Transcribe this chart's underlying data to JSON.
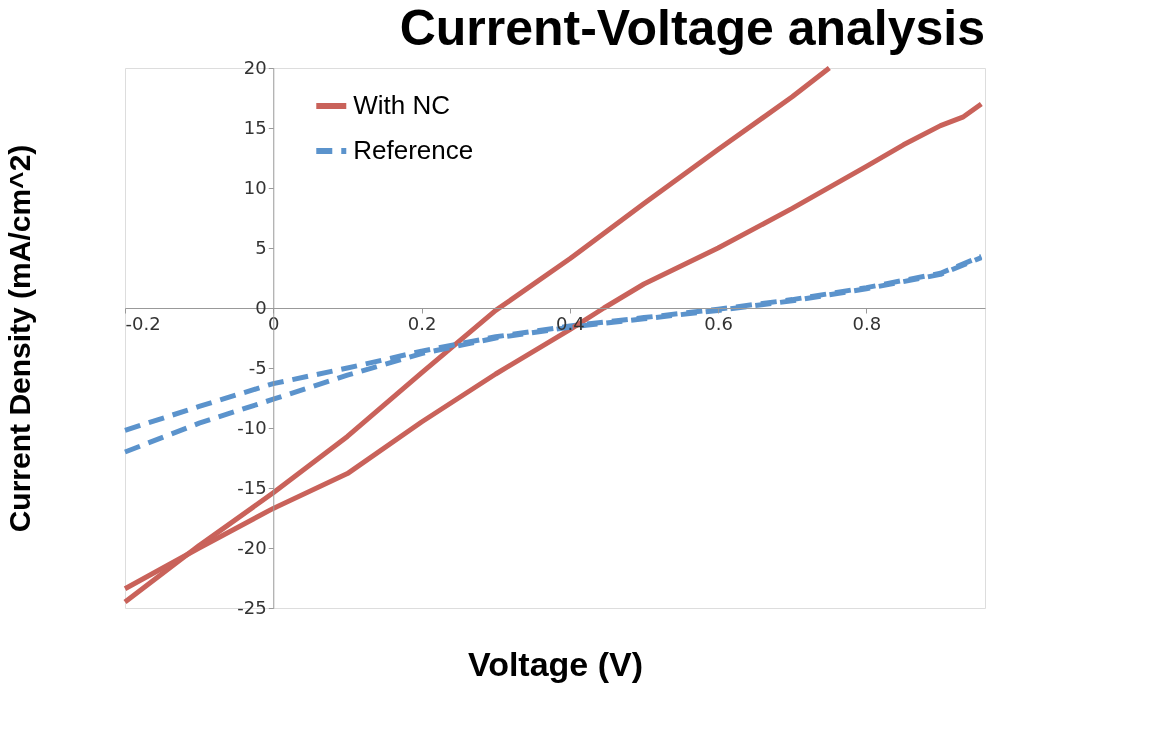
{
  "chart_data": {
    "type": "line",
    "title": "Current-Voltage analysis",
    "xlabel": "Voltage (V)",
    "ylabel": "Current Density (mA/cm^2)",
    "xlim": [
      -0.2,
      0.96
    ],
    "xticks": [
      -0.2,
      0,
      0.2,
      0.4,
      0.6,
      0.8
    ],
    "ylim": [
      -25,
      20
    ],
    "yticks": [
      -25,
      -20,
      -15,
      -10,
      -5,
      0,
      5,
      10,
      15,
      20
    ],
    "grid": false,
    "legend": "top left",
    "marker": "none",
    "series": [
      {
        "name": "With NC",
        "color": "#c9625a",
        "line_style": "solid",
        "x": [
          -0.2,
          -0.1,
          0,
          0.1,
          0.2,
          0.3,
          0.4,
          0.5,
          0.6,
          0.7,
          0.75
        ],
        "values": [
          -24.5,
          -19.8,
          -15.4,
          -10.7,
          -5.4,
          -0.2,
          4.1,
          8.7,
          13.2,
          17.6,
          20
        ]
      },
      {
        "name": "Reference",
        "color": "#5b93cc",
        "line_style": "dashed",
        "x": [
          -0.2,
          -0.1,
          0,
          0.1,
          0.2,
          0.3,
          0.4,
          0.5,
          0.6,
          0.7,
          0.8,
          0.9,
          0.955
        ],
        "values": [
          -10.2,
          -8.2,
          -6.3,
          -5.0,
          -3.6,
          -2.4,
          -1.5,
          -0.8,
          -0.1,
          0.7,
          1.7,
          2.9,
          4.3
        ]
      },
      {
        "color": "#c9625a",
        "line_style": "solid",
        "x": [
          -0.2,
          -0.1,
          0,
          0.1,
          0.2,
          0.3,
          0.4,
          0.446,
          0.5,
          0.6,
          0.7,
          0.8,
          0.85,
          0.9,
          0.93,
          0.955
        ],
        "values": [
          -23.4,
          -20.0,
          -16.7,
          -13.8,
          -9.5,
          -5.5,
          -1.8,
          0,
          2.0,
          5.0,
          8.3,
          11.8,
          13.6,
          15.2,
          15.9,
          17.0
        ]
      },
      {
        "color": "#5b93cc",
        "line_style": "dashed",
        "x": [
          -0.2,
          -0.1,
          0,
          0.1,
          0.2,
          0.3,
          0.4,
          0.5,
          0.6,
          0.7,
          0.8,
          0.9,
          0.955
        ],
        "values": [
          -12.0,
          -9.6,
          -7.6,
          -5.6,
          -3.8,
          -2.5,
          -1.6,
          -0.9,
          -0.2,
          0.6,
          1.6,
          2.8,
          4.2
        ]
      }
    ]
  }
}
